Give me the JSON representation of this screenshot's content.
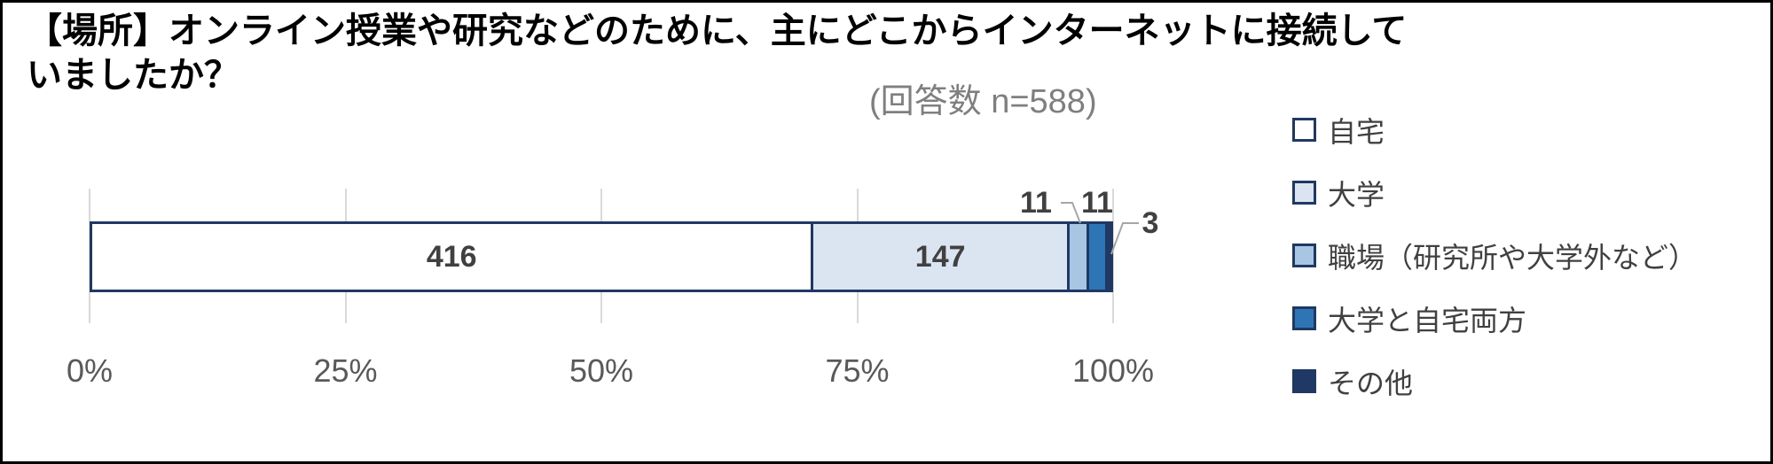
{
  "title": "【場所】オンライン授業や研究などのために、主にどこからインターネットに接続していましたか？",
  "subtitle": "(回答数 n=588)",
  "chart_data": {
    "type": "bar",
    "variant": "horizontal-stacked",
    "title": "【場所】オンライン授業や研究などのために、主にどこからインターネットに接続していましたか？",
    "n_note": "(回答数 n=588)",
    "total": 588,
    "categories": [
      "自宅",
      "大学",
      "職場（研究所や大学外など）",
      "大学と自宅両方",
      "その他"
    ],
    "series": [
      {
        "key": "home",
        "label": "自宅",
        "value": 416,
        "fill": "#ffffff",
        "label_inside": true
      },
      {
        "key": "university",
        "label": "大学",
        "value": 147,
        "fill": "#dbe5f1",
        "label_inside": true
      },
      {
        "key": "workplace",
        "label": "職場（研究所や大学外など）",
        "value": 11,
        "fill": "#a8c6e4",
        "label_inside": false
      },
      {
        "key": "university-and-home",
        "label": "大学と自宅両方",
        "value": 11,
        "fill": "#2e75b6",
        "label_inside": false
      },
      {
        "key": "other",
        "label": "その他",
        "value": 3,
        "fill": "#1f3864",
        "label_inside": false
      }
    ],
    "x_ticks": [
      "0%",
      "25%",
      "50%",
      "75%",
      "100%"
    ],
    "xlim": [
      0,
      100
    ],
    "gridlines": true,
    "legend_position": "right"
  },
  "colors": {
    "segment_border": "#1f3864",
    "gridline": "#d9d9d9",
    "value_label": "#404040",
    "axis_label": "#595959",
    "subtitle_text": "#7f7f7f",
    "legend_text": "#404040",
    "leader_line": "#a6a6a6",
    "frame_border": "#000000"
  }
}
